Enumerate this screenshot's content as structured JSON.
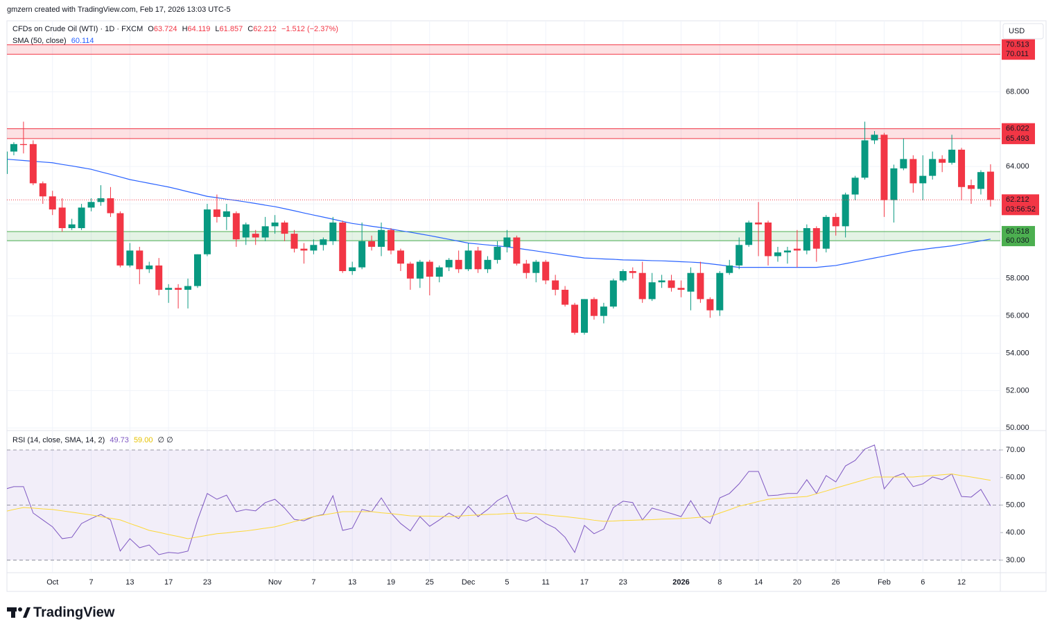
{
  "attribution": "gmzern created with TradingView.com, Feb 17, 2026 13:03 UTC-5",
  "logo": "TradingView",
  "chart_data": [
    {
      "type": "candlestick",
      "legend": {
        "symbol": "CFDs on Crude Oil (WTI) · 1D · FXCM",
        "ohlc": [
          {
            "key": "O",
            "value": "63.724"
          },
          {
            "key": "H",
            "value": "64.119"
          },
          {
            "key": "L",
            "value": "61.857"
          },
          {
            "key": "C",
            "value": "62.212"
          }
        ],
        "change": "−1.512 (−2.37%)"
      },
      "currency": "USD",
      "categories": [
        null,
        null,
        null,
        null,
        null,
        "Oct",
        null,
        null,
        null,
        "7",
        null,
        null,
        null,
        "13",
        null,
        null,
        null,
        "17",
        null,
        null,
        null,
        "23",
        null,
        null,
        null,
        null,
        null,
        null,
        "Nov",
        null,
        null,
        null,
        "7",
        null,
        null,
        null,
        "13",
        null,
        null,
        null,
        "19",
        null,
        null,
        null,
        "25",
        null,
        null,
        null,
        "Dec",
        null,
        null,
        null,
        "5",
        null,
        null,
        null,
        "11",
        null,
        null,
        null,
        "17",
        null,
        null,
        null,
        "23",
        null,
        null,
        null,
        null,
        null,
        "2026",
        null,
        null,
        null,
        "8",
        null,
        null,
        null,
        "14",
        null,
        null,
        null,
        "20",
        null,
        null,
        null,
        "26",
        null,
        null,
        null,
        null,
        "Feb",
        null,
        null,
        null,
        "6",
        null,
        null,
        null,
        "12",
        null,
        null,
        null
      ],
      "open": [
        63.6,
        64.8,
        65.2,
        65.2,
        63.1,
        62.4,
        61.8,
        60.7,
        60.7,
        61.8,
        62.1,
        62.3,
        61.5,
        58.7,
        59.5,
        58.5,
        58.7,
        57.4,
        57.5,
        57.4,
        57.6,
        59.3,
        61.7,
        61.3,
        61.5,
        60.2,
        60.4,
        60.2,
        60.8,
        61.0,
        60.4,
        59.6,
        59.5,
        59.8,
        60.0,
        61.0,
        58.4,
        58.6,
        60.0,
        59.7,
        60.6,
        59.5,
        58.8,
        58.0,
        58.9,
        58.1,
        58.6,
        59.0,
        58.5,
        59.5,
        58.5,
        59.0,
        59.7,
        60.2,
        58.8,
        58.3,
        58.9,
        57.9,
        57.4,
        56.6,
        55.1,
        56.9,
        56.0,
        56.5,
        57.9,
        58.4,
        58.3,
        56.9,
        57.8,
        57.9,
        57.5,
        57.3,
        58.3,
        56.9,
        56.3,
        58.3,
        58.7,
        59.8,
        61.0,
        61.0,
        59.2,
        59.4,
        59.6,
        59.5,
        60.7,
        59.6,
        61.3,
        60.8,
        62.5,
        63.4,
        65.4,
        65.7,
        62.2,
        63.9,
        64.4,
        63.1,
        63.5,
        64.4,
        64.2,
        64.9,
        63.0,
        62.8,
        63.724
      ],
      "high": [
        64.9,
        65.3,
        66.4,
        65.4,
        63.2,
        62.7,
        62.3,
        61.2,
        62.0,
        62.3,
        63.0,
        62.9,
        61.6,
        59.9,
        59.7,
        58.9,
        59.1,
        57.7,
        57.7,
        58.0,
        59.3,
        62.0,
        62.5,
        62.0,
        61.6,
        61.0,
        60.6,
        61.3,
        61.4,
        61.1,
        60.6,
        59.9,
        60.1,
        60.2,
        61.3,
        61.1,
        58.9,
        61.0,
        60.3,
        61.0,
        60.7,
        59.6,
        58.9,
        59.0,
        59.0,
        58.7,
        59.1,
        59.5,
        59.9,
        59.7,
        59.2,
        60.0,
        60.6,
        60.3,
        59.0,
        59.0,
        59.0,
        58.2,
        57.6,
        56.7,
        56.9,
        57.0,
        56.7,
        58.0,
        58.5,
        58.6,
        58.9,
        58.3,
        58.2,
        58.2,
        57.9,
        58.6,
        58.9,
        57.0,
        58.4,
        59.0,
        60.2,
        61.1,
        62.1,
        61.1,
        59.7,
        59.7,
        60.6,
        60.9,
        60.8,
        61.4,
        61.5,
        62.6,
        63.5,
        66.4,
        65.9,
        65.8,
        64.1,
        65.5,
        64.6,
        64.6,
        64.8,
        64.6,
        65.7,
        65.0,
        63.3,
        63.8,
        64.119
      ],
      "low": [
        63.5,
        64.6,
        64.7,
        63.0,
        62.0,
        61.4,
        60.5,
        60.6,
        60.6,
        61.6,
        61.9,
        61.3,
        58.6,
        58.6,
        57.7,
        58.3,
        57.1,
        56.7,
        56.4,
        56.4,
        57.5,
        59.2,
        61.0,
        60.6,
        59.7,
        59.8,
        59.8,
        60.0,
        60.4,
        60.0,
        59.4,
        58.8,
        59.3,
        59.5,
        59.8,
        58.3,
        58.2,
        58.5,
        59.5,
        59.2,
        59.3,
        58.4,
        57.4,
        57.5,
        57.1,
        57.8,
        58.4,
        58.3,
        58.4,
        58.3,
        58.3,
        58.8,
        59.4,
        58.7,
        58.0,
        57.8,
        57.7,
        57.1,
        56.5,
        55.0,
        55.0,
        55.8,
        55.6,
        56.4,
        57.8,
        58.0,
        56.7,
        56.8,
        57.5,
        57.3,
        57.0,
        56.3,
        56.7,
        55.9,
        56.0,
        58.2,
        58.5,
        59.7,
        59.2,
        58.7,
        58.9,
        58.8,
        58.6,
        59.3,
        58.9,
        59.4,
        60.3,
        60.2,
        62.2,
        63.3,
        65.2,
        61.3,
        61.0,
        63.8,
        62.6,
        62.2,
        63.3,
        63.7,
        64.1,
        62.2,
        62.0,
        62.5,
        61.857
      ],
      "close": [
        64.8,
        65.2,
        65.15,
        63.1,
        62.4,
        61.7,
        60.7,
        60.9,
        61.8,
        62.1,
        62.3,
        61.5,
        58.7,
        59.5,
        58.5,
        58.7,
        57.4,
        57.5,
        57.4,
        57.6,
        59.3,
        61.7,
        61.3,
        61.6,
        60.1,
        60.9,
        60.2,
        60.8,
        61.0,
        60.4,
        59.6,
        59.5,
        59.8,
        60.1,
        61.0,
        58.4,
        58.6,
        60.0,
        59.7,
        60.6,
        59.5,
        58.8,
        58.0,
        58.9,
        58.1,
        58.6,
        59.0,
        58.5,
        59.5,
        58.5,
        59.0,
        59.7,
        60.2,
        58.8,
        58.3,
        58.9,
        57.9,
        57.4,
        56.6,
        55.1,
        56.9,
        56.0,
        56.5,
        57.9,
        58.4,
        58.3,
        56.9,
        57.8,
        57.9,
        57.5,
        57.4,
        58.3,
        56.9,
        56.3,
        58.3,
        58.7,
        59.8,
        61.0,
        60.9,
        59.2,
        59.4,
        59.5,
        59.5,
        60.7,
        59.6,
        61.3,
        60.8,
        62.5,
        63.4,
        65.4,
        65.7,
        62.2,
        63.9,
        64.4,
        63.1,
        63.5,
        64.4,
        64.2,
        64.9,
        62.9,
        62.8,
        63.7,
        62.212
      ],
      "up_color": "#089981",
      "down_color": "#f23645",
      "series": [
        {
          "name": "SMA (50, close)",
          "color": "#2962ff",
          "legend_value": "60.114",
          "values": [
            64.4,
            64.36,
            64.32,
            64.28,
            64.24,
            64.2,
            64.11,
            64.03,
            63.94,
            63.85,
            63.71,
            63.58,
            63.44,
            63.3,
            63.2,
            63.1,
            63.0,
            62.9,
            62.78,
            62.65,
            62.53,
            62.4,
            62.33,
            62.25,
            62.18,
            62.1,
            62.02,
            61.93,
            61.85,
            61.74,
            61.63,
            61.51,
            61.4,
            61.29,
            61.18,
            61.06,
            60.95,
            60.88,
            60.8,
            60.73,
            60.65,
            60.56,
            60.48,
            60.39,
            60.3,
            60.2,
            60.1,
            60.0,
            59.9,
            59.85,
            59.8,
            59.75,
            59.7,
            59.63,
            59.55,
            59.48,
            59.4,
            59.33,
            59.25,
            59.18,
            59.1,
            59.08,
            59.05,
            59.03,
            59.0,
            58.99,
            58.98,
            58.96,
            58.95,
            58.93,
            58.9,
            58.88,
            58.85,
            58.79,
            58.73,
            58.66,
            58.6,
            58.6,
            58.6,
            58.6,
            58.6,
            58.6,
            58.6,
            58.6,
            58.6,
            58.65,
            58.7,
            58.8,
            58.9,
            59.0,
            59.1,
            59.2,
            59.3,
            59.4,
            59.5,
            59.56,
            59.63,
            59.69,
            59.75,
            59.84,
            59.93,
            60.02,
            60.114
          ]
        }
      ],
      "zones": [
        {
          "values": [
            70.513,
            70.011
          ],
          "value_labels": [
            "70.513",
            "70.011"
          ],
          "color": "#f23645"
        },
        {
          "values": [
            66.022,
            65.493
          ],
          "value_labels": [
            "66.022",
            "65.493"
          ],
          "color": "#f23645"
        },
        {
          "values": [
            60.518,
            60.03
          ],
          "value_labels": [
            "60.518",
            "60.030"
          ],
          "color": "#4caf50"
        }
      ],
      "last": {
        "value": 62.212,
        "label": "62.212",
        "countdown": "03:56:52",
        "color": "#f23645"
      },
      "ylim": [
        49.9,
        71.8
      ],
      "yticks": [
        {
          "value": 50,
          "label": "50.000"
        },
        {
          "value": 52,
          "label": "52.000"
        },
        {
          "value": 54,
          "label": "54.000"
        },
        {
          "value": 56,
          "label": "56.000"
        },
        {
          "value": 58,
          "label": "58.000"
        },
        {
          "value": 60,
          "label": "60.000"
        },
        {
          "value": 62,
          "label": "62.000"
        },
        {
          "value": 64,
          "label": "64.000"
        },
        {
          "value": 66,
          "label": "66.000"
        },
        {
          "value": 68,
          "label": "68.000"
        }
      ],
      "grid": true
    },
    {
      "type": "line",
      "title": "RSI (14, close, SMA, 14, 2)",
      "legend_values": [
        "49.73",
        "59.00"
      ],
      "legend_extra": "∅ ∅",
      "series": [
        {
          "color": "#7e57c2",
          "values": [
            55.7,
            56.7,
            56.7,
            47.1,
            44.6,
            42.1,
            37.8,
            38.3,
            43.3,
            45.1,
            46.6,
            44.6,
            33.3,
            37.8,
            34.5,
            35.5,
            32.0,
            32.8,
            32.5,
            33.3,
            44.6,
            54.2,
            52.1,
            53.6,
            47.6,
            48.4,
            47.9,
            50.9,
            52.1,
            48.9,
            44.8,
            44.3,
            45.8,
            46.6,
            53.4,
            40.8,
            41.6,
            48.4,
            47.6,
            52.6,
            47.1,
            43.3,
            40.6,
            45.8,
            42.3,
            44.6,
            47.1,
            45.1,
            49.6,
            45.8,
            48.4,
            51.6,
            53.6,
            45.1,
            44.1,
            45.8,
            43.3,
            41.6,
            38.3,
            32.8,
            42.6,
            39.6,
            41.3,
            49.1,
            51.4,
            50.9,
            44.6,
            48.9,
            47.9,
            46.9,
            45.8,
            51.6,
            45.8,
            43.3,
            52.6,
            54.2,
            57.7,
            62.2,
            62.2,
            53.4,
            53.6,
            54.2,
            54.2,
            59.2,
            54.2,
            60.7,
            58.4,
            64.2,
            66.2,
            70.3,
            71.8,
            55.9,
            60.2,
            61.5,
            56.7,
            57.7,
            60.2,
            59.2,
            61.3,
            53.1,
            52.9,
            55.7,
            49.73
          ]
        },
        {
          "color": "#fdd835",
          "values": [
            47.6,
            48.4,
            49.1,
            48.9,
            48.6,
            48.4,
            47.9,
            47.4,
            46.9,
            46.4,
            45.8,
            45.2,
            44.6,
            43.3,
            42.1,
            40.8,
            40.1,
            39.3,
            38.6,
            37.8,
            38.4,
            39.0,
            39.6,
            39.9,
            40.3,
            40.6,
            41.1,
            41.6,
            42.1,
            43.0,
            44.0,
            44.9,
            45.8,
            46.4,
            47.0,
            47.6,
            47.6,
            47.6,
            47.6,
            47.2,
            46.9,
            46.5,
            46.1,
            46.0,
            46.0,
            45.9,
            45.8,
            46.0,
            46.2,
            46.4,
            46.6,
            46.7,
            46.9,
            47.0,
            47.1,
            46.8,
            46.5,
            46.1,
            45.8,
            45.4,
            45.0,
            44.5,
            44.1,
            44.2,
            44.4,
            44.5,
            44.6,
            44.7,
            44.9,
            45.0,
            45.1,
            45.3,
            45.6,
            45.8,
            47.1,
            48.3,
            49.6,
            50.4,
            51.3,
            52.1,
            52.4,
            52.6,
            52.9,
            53.1,
            54.1,
            55.1,
            56.2,
            57.2,
            58.2,
            59.2,
            60.2,
            60.2,
            60.2,
            60.2,
            60.2,
            60.5,
            60.7,
            61.0,
            61.3,
            60.7,
            60.2,
            59.6,
            59.0
          ]
        }
      ],
      "levels": [
        70,
        50,
        30
      ],
      "band": [
        70,
        30
      ],
      "ylim": [
        25.7,
        76.8
      ],
      "yticks": [
        {
          "value": 30,
          "label": "30.00"
        },
        {
          "value": 40,
          "label": "40.00"
        },
        {
          "value": 50,
          "label": "50.00"
        },
        {
          "value": 60,
          "label": "60.00"
        },
        {
          "value": 70,
          "label": "70.00"
        }
      ]
    }
  ]
}
